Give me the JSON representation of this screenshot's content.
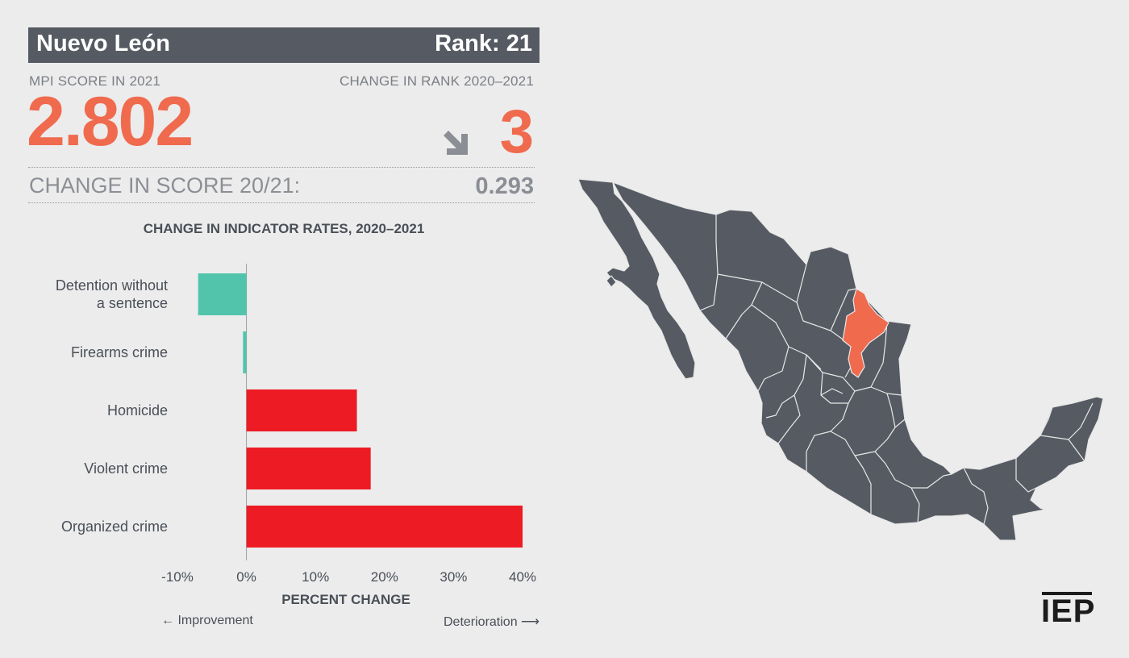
{
  "header": {
    "state": "Nuevo León",
    "rank": "Rank: 21"
  },
  "score": {
    "label": "MPI SCORE IN 2021",
    "value": "2.802"
  },
  "rank_change": {
    "label": "CHANGE IN RANK 2020–2021",
    "value": "3",
    "direction": "down"
  },
  "score_change": {
    "label": "CHANGE IN SCORE 20/21:",
    "value": "0.293"
  },
  "colors": {
    "accent": "#f06a4e",
    "improvement": "#52c4ac",
    "deterioration": "#ed1c24",
    "header_bg": "#565b63",
    "map_fill": "#565b63"
  },
  "chart_data": {
    "type": "bar",
    "orientation": "horizontal",
    "title": "CHANGE IN INDICATOR RATES, 2020–2021",
    "xlabel": "PERCENT CHANGE",
    "categories": [
      "Detention without a sentence",
      "Firearms crime",
      "Homicide",
      "Violent crime",
      "Organized crime"
    ],
    "values": [
      -7,
      -0.5,
      16,
      18,
      40
    ],
    "xlim": [
      -10,
      40
    ],
    "xticks": [
      "-10%",
      "0%",
      "10%",
      "20%",
      "30%",
      "40%"
    ],
    "improvement_label": "Improvement",
    "deterioration_label": "Deterioration"
  },
  "map": {
    "highlighted_state": "Nuevo León"
  },
  "logo": {
    "text": "IEP"
  }
}
